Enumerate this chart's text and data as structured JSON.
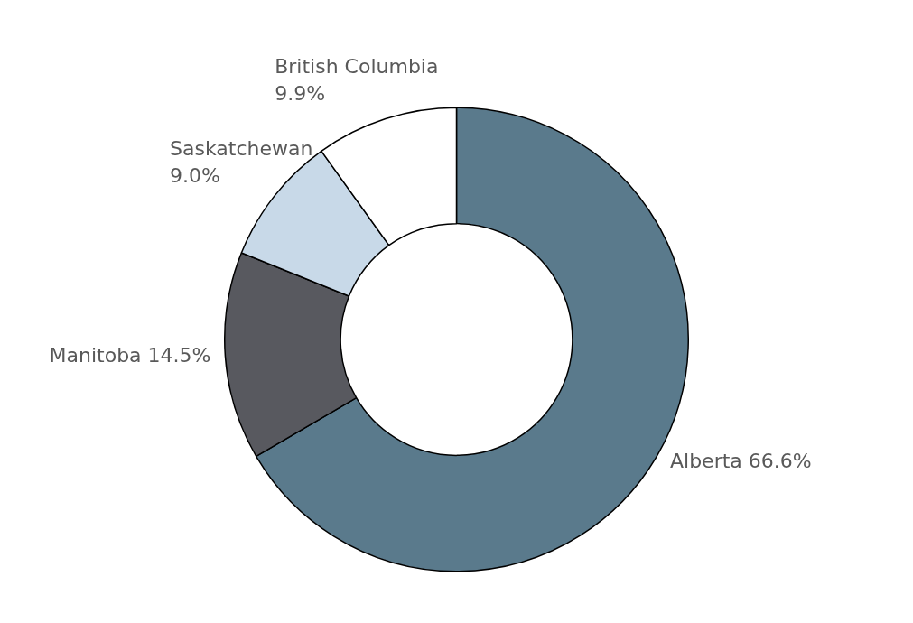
{
  "chart_data": {
    "type": "donut",
    "categories": [
      "Alberta",
      "Manitoba",
      "Saskatchewan",
      "British Columbia"
    ],
    "values": [
      66.6,
      14.5,
      9.0,
      9.9
    ],
    "value_labels": [
      "66.6%",
      "14.5%",
      "9.0%",
      "9.9%"
    ],
    "colors": [
      "#5a7a8c",
      "#58595f",
      "#c8d9e8",
      "#ffffff"
    ],
    "legend": false
  }
}
